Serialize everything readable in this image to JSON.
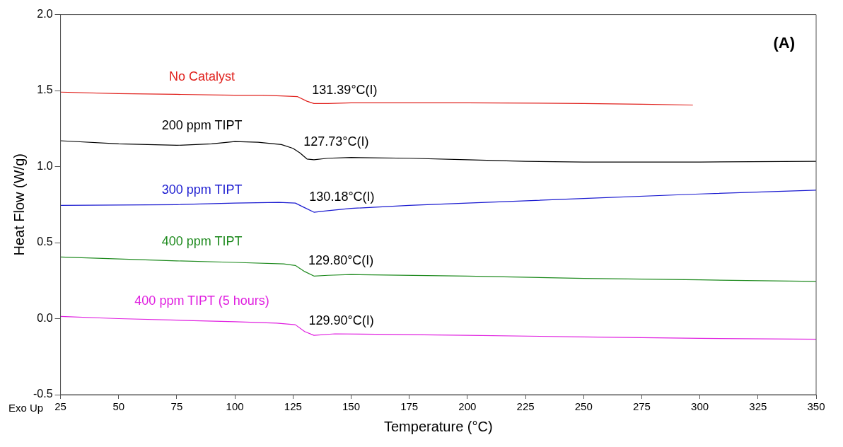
{
  "chart_data": {
    "type": "line",
    "title": "(A)",
    "xlabel": "Temperature (°C)",
    "ylabel": "Heat Flow (W/g)",
    "xlim": [
      25,
      350
    ],
    "xticks": [
      25,
      50,
      75,
      100,
      125,
      150,
      175,
      200,
      225,
      250,
      275,
      300,
      325,
      350
    ],
    "ylim": [
      -0.5,
      2.0
    ],
    "yticks": [
      -0.5,
      {
        "value": 0,
        "label": "0.0"
      },
      0.5,
      {
        "value": 1,
        "label": "1.0"
      },
      1.5,
      {
        "value": 2,
        "label": "2.0"
      }
    ],
    "grid": false,
    "legend": false,
    "marker": "none",
    "line_style": "solid",
    "series": [
      {
        "name": "No Catalyst",
        "color": "#e0201c",
        "x": [
          25,
          50,
          75,
          100,
          112,
          120,
          127,
          131,
          134,
          140,
          150,
          175,
          200,
          250,
          275,
          297
        ],
        "values": [
          1.49,
          1.48,
          1.475,
          1.47,
          1.47,
          1.465,
          1.46,
          1.43,
          1.415,
          1.415,
          1.42,
          1.42,
          1.42,
          1.415,
          1.41,
          1.405
        ]
      },
      {
        "name": "200 ppm TIPT",
        "color": "#000000",
        "x": [
          25,
          50,
          75,
          90,
          100,
          110,
          120,
          125,
          128,
          131,
          134,
          140,
          150,
          175,
          200,
          225,
          250,
          275,
          300,
          350
        ],
        "values": [
          1.17,
          1.15,
          1.14,
          1.15,
          1.165,
          1.16,
          1.145,
          1.12,
          1.09,
          1.05,
          1.045,
          1.055,
          1.06,
          1.055,
          1.045,
          1.035,
          1.03,
          1.03,
          1.03,
          1.035
        ]
      },
      {
        "name": "300 ppm TIPT",
        "color": "#1a1ad0",
        "x": [
          25,
          75,
          100,
          119,
          126,
          130,
          134,
          140,
          150,
          175,
          200,
          250,
          300,
          350
        ],
        "values": [
          0.745,
          0.75,
          0.76,
          0.765,
          0.76,
          0.73,
          0.7,
          0.71,
          0.725,
          0.745,
          0.76,
          0.79,
          0.82,
          0.845
        ]
      },
      {
        "name": "400 ppm TIPT",
        "color": "#1e8a1e",
        "x": [
          25,
          75,
          100,
          121,
          126,
          130,
          134,
          140,
          150,
          200,
          250,
          300,
          350
        ],
        "values": [
          0.405,
          0.38,
          0.37,
          0.36,
          0.35,
          0.31,
          0.28,
          0.285,
          0.29,
          0.28,
          0.265,
          0.255,
          0.245
        ]
      },
      {
        "name": "400 ppm TIPT (5 hours)",
        "color": "#e020e0",
        "x": [
          25,
          50,
          75,
          100,
          118,
          126,
          130,
          134,
          143,
          175,
          200,
          250,
          300,
          350
        ],
        "values": [
          0.015,
          0.0,
          -0.01,
          -0.02,
          -0.03,
          -0.04,
          -0.085,
          -0.11,
          -0.1,
          -0.105,
          -0.11,
          -0.12,
          -0.13,
          -0.135
        ]
      }
    ],
    "annotations": [
      {
        "text": "131.39°C(I)",
        "x": 131.39,
        "y": 1.43
      },
      {
        "text": "127.73°C(I)",
        "x": 127.73,
        "y": 1.09
      },
      {
        "text": "130.18°C(I)",
        "x": 130.18,
        "y": 0.73
      },
      {
        "text": "129.80°C(I)",
        "x": 129.8,
        "y": 0.31
      },
      {
        "text": "129.90°C(I)",
        "x": 129.9,
        "y": -0.085
      },
      "Exo Up"
    ]
  }
}
